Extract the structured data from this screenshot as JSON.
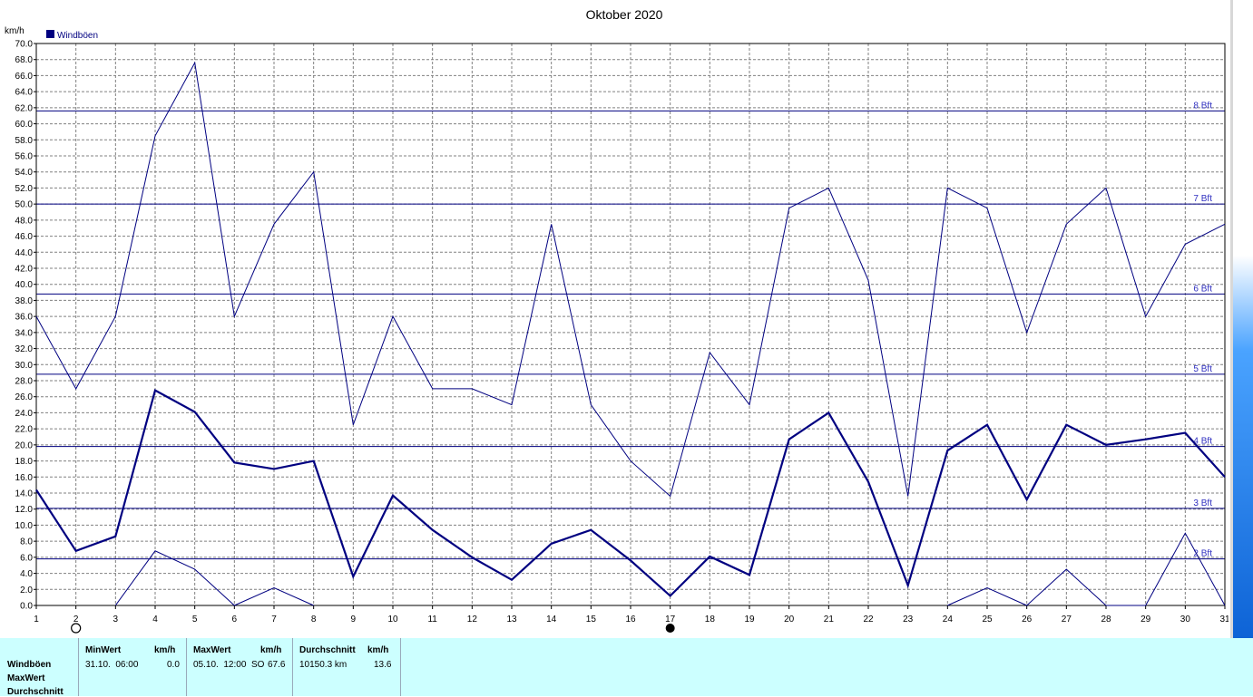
{
  "chart_data": {
    "type": "line",
    "title": "Oktober 2020",
    "ylabel": "km/h",
    "ylim": [
      0,
      70
    ],
    "ytick_step": 2,
    "x": [
      1,
      2,
      3,
      4,
      5,
      6,
      7,
      8,
      9,
      10,
      11,
      12,
      13,
      14,
      15,
      16,
      17,
      18,
      19,
      20,
      21,
      22,
      23,
      24,
      25,
      26,
      27,
      28,
      29,
      30,
      31
    ],
    "legend": "Windböen",
    "series": [
      {
        "name": "MaxWert",
        "values": [
          36.0,
          27.0,
          36.0,
          58.5,
          67.6,
          36.0,
          47.5,
          54.0,
          22.5,
          36.0,
          27.0,
          27.0,
          25.0,
          47.5,
          25.0,
          18.0,
          13.6,
          31.5,
          25.0,
          49.5,
          52.0,
          40.5,
          13.6,
          52.0,
          49.5,
          34.0,
          47.5,
          52.0,
          36.0,
          45.0,
          47.5
        ]
      },
      {
        "name": "Durchschnitt",
        "values": [
          14.4,
          6.8,
          8.6,
          26.8,
          24.1,
          17.8,
          17.0,
          18.0,
          3.6,
          13.7,
          9.4,
          6.0,
          3.2,
          7.7,
          9.4,
          5.6,
          1.2,
          6.1,
          3.8,
          20.7,
          24.0,
          15.4,
          2.5,
          19.3,
          22.5,
          13.2,
          22.5,
          20.0,
          20.7,
          21.5,
          16.0
        ]
      },
      {
        "name": "MinWert",
        "values": [
          null,
          null,
          0.0,
          6.8,
          4.5,
          0.0,
          2.2,
          0.0,
          null,
          null,
          null,
          null,
          null,
          null,
          null,
          null,
          null,
          null,
          null,
          null,
          null,
          null,
          null,
          0.0,
          2.2,
          0.0,
          4.5,
          0.0,
          0.0,
          9.0,
          0.0
        ]
      }
    ],
    "bft_lines": [
      {
        "label": "2 Bft",
        "value": 5.8
      },
      {
        "label": "3 Bft",
        "value": 12.1
      },
      {
        "label": "4 Bft",
        "value": 19.8
      },
      {
        "label": "5 Bft",
        "value": 28.8
      },
      {
        "label": "6 Bft",
        "value": 38.8
      },
      {
        "label": "7 Bft",
        "value": 50.0
      },
      {
        "label": "8 Bft",
        "value": 61.6
      }
    ],
    "markers": [
      {
        "day": 2,
        "kind": "full-moon-icon"
      },
      {
        "day": 17,
        "kind": "new-moon-icon"
      }
    ],
    "grid": true,
    "legend_position": "top-left",
    "colors": {
      "series": "#000080",
      "grid": "#808080",
      "bft": "#000080",
      "bft_text": "#3030c0"
    }
  },
  "stats": {
    "row_labels": [
      "Windböen",
      "MaxWert",
      "Durchschnitt"
    ],
    "min": {
      "header": "MinWert",
      "unit": "km/h",
      "when": "31.10.  06:00",
      "value": "0.0"
    },
    "max": {
      "header": "MaxWert",
      "unit": "km/h",
      "when": "05.10.  12:00",
      "dir": "SO",
      "value": "67.6"
    },
    "avg": {
      "header": "Durchschnitt",
      "unit": "km/h",
      "dist": "10150.3 km",
      "value": "13.6"
    }
  }
}
